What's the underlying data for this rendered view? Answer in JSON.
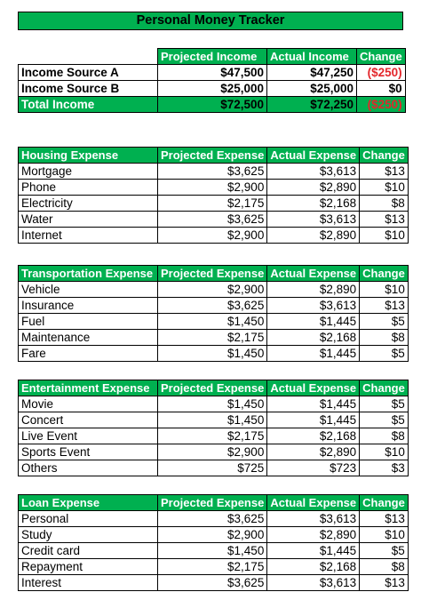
{
  "title": "Personal Money Tracker",
  "income": {
    "headers": [
      "",
      "Projected Income",
      "Actual Income",
      "Change"
    ],
    "rows": [
      {
        "label": "Income Source A",
        "projected": "$47,500",
        "actual": "$47,250",
        "change": "($250)"
      },
      {
        "label": "Income Source B",
        "projected": "$25,000",
        "actual": "$25,000",
        "change": "$0"
      }
    ],
    "total": {
      "label": "Total Income",
      "projected": "$72,500",
      "actual": "$72,250",
      "change": "($250)"
    }
  },
  "sections": [
    {
      "headers": [
        "Housing Expense",
        "Projected Expense",
        "Actual Expense",
        "Change"
      ],
      "rows": [
        {
          "label": "Mortgage",
          "projected": "$3,625",
          "actual": "$3,613",
          "change": "$13"
        },
        {
          "label": "Phone",
          "projected": "$2,900",
          "actual": "$2,890",
          "change": "$10"
        },
        {
          "label": "Electricity",
          "projected": "$2,175",
          "actual": "$2,168",
          "change": "$8"
        },
        {
          "label": "Water",
          "projected": "$3,625",
          "actual": "$3,613",
          "change": "$13"
        },
        {
          "label": "Internet",
          "projected": "$2,900",
          "actual": "$2,890",
          "change": "$10"
        }
      ]
    },
    {
      "headers": [
        "Transportation Expense",
        "Projected Expense",
        "Actual Expense",
        "Change"
      ],
      "rows": [
        {
          "label": "Vehicle",
          "projected": "$2,900",
          "actual": "$2,890",
          "change": "$10"
        },
        {
          "label": "Insurance",
          "projected": "$3,625",
          "actual": "$3,613",
          "change": "$13"
        },
        {
          "label": "Fuel",
          "projected": "$1,450",
          "actual": "$1,445",
          "change": "$5"
        },
        {
          "label": "Maintenance",
          "projected": "$2,175",
          "actual": "$2,168",
          "change": "$8"
        },
        {
          "label": "Fare",
          "projected": "$1,450",
          "actual": "$1,445",
          "change": "$5"
        }
      ]
    },
    {
      "headers": [
        "Entertainment Expense",
        "Projected Expense",
        "Actual Expense",
        "Change"
      ],
      "rows": [
        {
          "label": "Movie",
          "projected": "$1,450",
          "actual": "$1,445",
          "change": "$5"
        },
        {
          "label": "Concert",
          "projected": "$1,450",
          "actual": "$1,445",
          "change": "$5"
        },
        {
          "label": "Live Event",
          "projected": "$2,175",
          "actual": "$2,168",
          "change": "$8"
        },
        {
          "label": "Sports Event",
          "projected": "$2,900",
          "actual": "$2,890",
          "change": "$10"
        },
        {
          "label": "Others",
          "projected": "$725",
          "actual": "$723",
          "change": "$3"
        }
      ]
    },
    {
      "headers": [
        "Loan Expense",
        "Projected Expense",
        "Actual Expense",
        "Change"
      ],
      "rows": [
        {
          "label": "Personal",
          "projected": "$3,625",
          "actual": "$3,613",
          "change": "$13"
        },
        {
          "label": "Study",
          "projected": "$2,900",
          "actual": "$2,890",
          "change": "$10"
        },
        {
          "label": "Credit card",
          "projected": "$1,450",
          "actual": "$1,445",
          "change": "$5"
        },
        {
          "label": "Repayment",
          "projected": "$2,175",
          "actual": "$2,168",
          "change": "$8"
        },
        {
          "label": "Interest",
          "projected": "$3,625",
          "actual": "$3,613",
          "change": "$13"
        }
      ]
    }
  ],
  "colors": {
    "header_green": "#00b050",
    "negative_red": "#e3262b"
  }
}
